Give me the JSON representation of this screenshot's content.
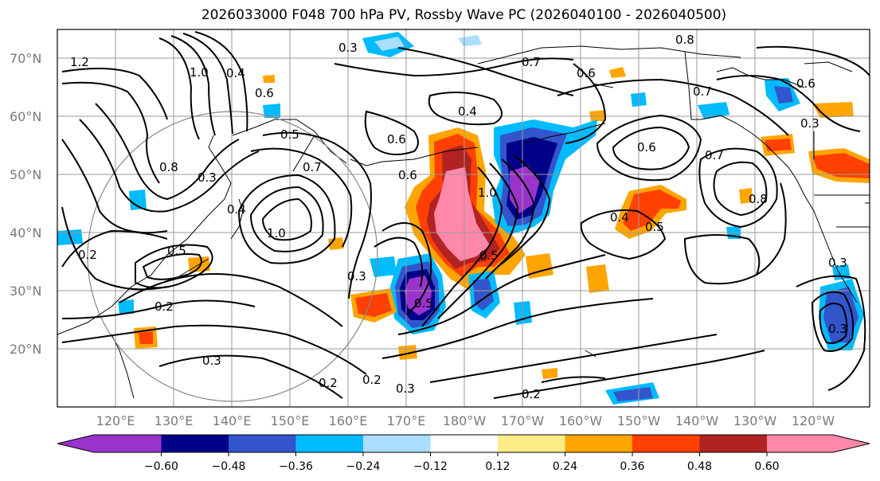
{
  "title": "2026033000 F048 700 hPa PV, Rossby Wave PC (2026040100 - 2026040500)",
  "lat_labels": [
    "70°N",
    "60°N",
    "50°N",
    "40°N",
    "30°N",
    "20°N"
  ],
  "lon_labels": [
    "120°E",
    "130°E",
    "140°E",
    "150°E",
    "160°E",
    "170°E",
    "180°W",
    "170°W",
    "160°W",
    "150°W",
    "140°W",
    "130°W",
    "120°W"
  ],
  "colorbar": {
    "tick_labels": [
      "−0.60",
      "−0.48",
      "−0.36",
      "−0.24",
      "−0.12",
      "0.12",
      "0.24",
      "0.36",
      "0.48",
      "0.60"
    ],
    "colors": [
      "#9933cc",
      "#000088",
      "#3355cc",
      "#00bbff",
      "#aaddff",
      "#ffffff",
      "#ffee88",
      "#ffa500",
      "#ff4000",
      "#b22222",
      "#ff88aa"
    ]
  },
  "contour_labels": [
    "1.2",
    "1.0",
    "0.8",
    "0.6",
    "0.5",
    "0.4",
    "0.3",
    "0.2",
    "0.7",
    "0.6",
    "0.4",
    "0.3",
    "0.8",
    "0.6",
    "0.7",
    "1.0",
    "0.5",
    "0.4",
    "0.3",
    "0.2",
    "0.6",
    "0.3",
    "0.6",
    "0.7",
    "0.5",
    "0.6",
    "0.8",
    "0.4",
    "1.0",
    "0.5",
    "0.7",
    "0.3",
    "0.2",
    "0.3",
    "0.2",
    "0.5",
    "0.2",
    "0.3",
    "0.3"
  ]
}
